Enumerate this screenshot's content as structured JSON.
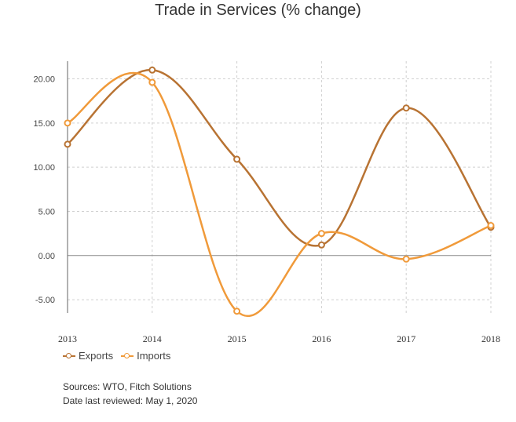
{
  "chart_data": {
    "type": "line",
    "title": "Trade in Services (% change)",
    "xlabel": "",
    "ylabel": "",
    "categories": [
      "2013",
      "2014",
      "2015",
      "2016",
      "2017",
      "2018"
    ],
    "y_ticks": [
      "20.00",
      "15.00",
      "10.00",
      "5.00",
      "0.00",
      "-5.00"
    ],
    "ylim": [
      -6.5,
      22
    ],
    "grid": true,
    "legend_position": "bottom-left",
    "series": [
      {
        "name": "Exports",
        "color": "#b87333",
        "values": [
          12.6,
          21.0,
          10.9,
          1.2,
          16.7,
          3.2
        ]
      },
      {
        "name": "Imports",
        "color": "#f09a3a",
        "values": [
          15.0,
          19.6,
          -6.3,
          2.5,
          -0.4,
          3.4
        ]
      }
    ]
  },
  "footer": {
    "sources": "Sources: WTO, Fitch Solutions",
    "reviewed": "Date last reviewed: May 1, 2020"
  }
}
